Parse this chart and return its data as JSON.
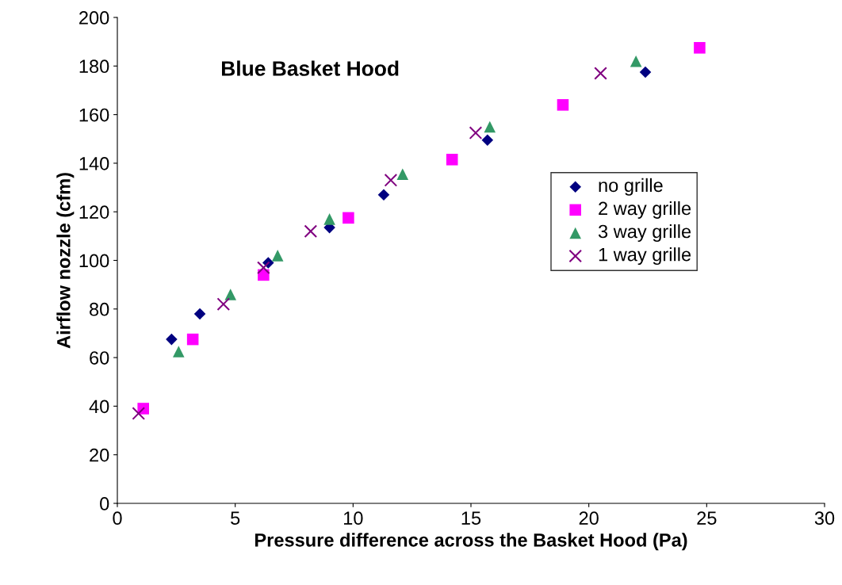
{
  "chart_data": {
    "type": "scatter",
    "title": "Blue Basket Hood",
    "xlabel": "Pressure difference across the Basket Hood (Pa)",
    "ylabel": "Airflow nozzle (cfm)",
    "xlim": [
      0,
      30
    ],
    "xticks": [
      0,
      5,
      10,
      15,
      20,
      25,
      30
    ],
    "ylim": [
      0,
      200
    ],
    "yticks": [
      0,
      20,
      40,
      60,
      80,
      100,
      120,
      140,
      160,
      180,
      200
    ],
    "grid": false,
    "legend": "right",
    "series": [
      {
        "name": "no grille",
        "color": "#000080",
        "marker": "diamond",
        "x": [
          2.3,
          3.5,
          6.4,
          9.0,
          11.3,
          15.7,
          22.4
        ],
        "values": [
          67.5,
          78,
          99,
          113.5,
          127,
          149.5,
          177.5
        ]
      },
      {
        "name": "2 way grille",
        "color": "#ff00ff",
        "marker": "square",
        "x": [
          1.1,
          3.2,
          6.2,
          9.8,
          14.2,
          18.9,
          24.7
        ],
        "values": [
          39,
          67.5,
          94,
          117.5,
          141.5,
          164,
          187.5
        ]
      },
      {
        "name": "3 way grille",
        "color": "#339966",
        "marker": "triangle",
        "x": [
          2.6,
          4.8,
          6.8,
          9.0,
          12.1,
          15.8,
          22.0
        ],
        "values": [
          62.5,
          86,
          102,
          117,
          135.5,
          155,
          182
        ]
      },
      {
        "name": "1 way grille",
        "color": "#800080",
        "marker": "cross",
        "x": [
          0.9,
          4.5,
          6.2,
          8.2,
          11.6,
          15.2,
          20.5
        ],
        "values": [
          37,
          82,
          97,
          112,
          133,
          152.5,
          177
        ]
      }
    ]
  }
}
